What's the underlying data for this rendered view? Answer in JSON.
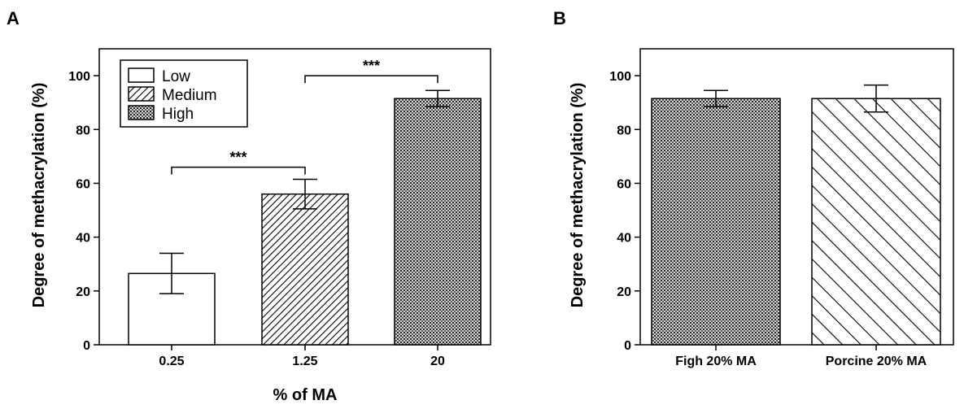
{
  "chart_data": [
    {
      "type": "bar",
      "panel_label": "A",
      "title": "",
      "xlabel": "% of MA",
      "ylabel": "Degree of methacrylation (%)",
      "ylim": [
        0,
        110
      ],
      "yticks": [
        0,
        20,
        40,
        60,
        80,
        100
      ],
      "categories": [
        "0.25",
        "1.25",
        "20"
      ],
      "values": [
        26.5,
        56,
        91.5
      ],
      "errors": [
        7.5,
        5.5,
        3
      ],
      "patterns": [
        "none",
        "diagonal",
        "dots"
      ],
      "legend": {
        "placement": "top-left",
        "entries": [
          {
            "label": "Low",
            "pattern": "none"
          },
          {
            "label": "Medium",
            "pattern": "diagonal"
          },
          {
            "label": "High",
            "pattern": "dots"
          }
        ]
      },
      "significance": [
        {
          "from": "0.25",
          "to": "1.25",
          "label": "***",
          "y": 66
        },
        {
          "from": "1.25",
          "to": "20",
          "label": "***",
          "y": 100
        }
      ]
    },
    {
      "type": "bar",
      "panel_label": "B",
      "title": "",
      "xlabel": "",
      "ylabel": "Degree of methacrylation (%)",
      "ylim": [
        0,
        110
      ],
      "yticks": [
        0,
        20,
        40,
        60,
        80,
        100
      ],
      "categories": [
        "Figh  20% MA",
        "Porcine 20% MA"
      ],
      "values": [
        91.5,
        91.5
      ],
      "errors": [
        3,
        5
      ],
      "patterns": [
        "dots",
        "back-diagonal"
      ]
    }
  ],
  "colors": {
    "ink": "#000000",
    "background": "#ffffff",
    "fill_light": "#ffffff"
  }
}
